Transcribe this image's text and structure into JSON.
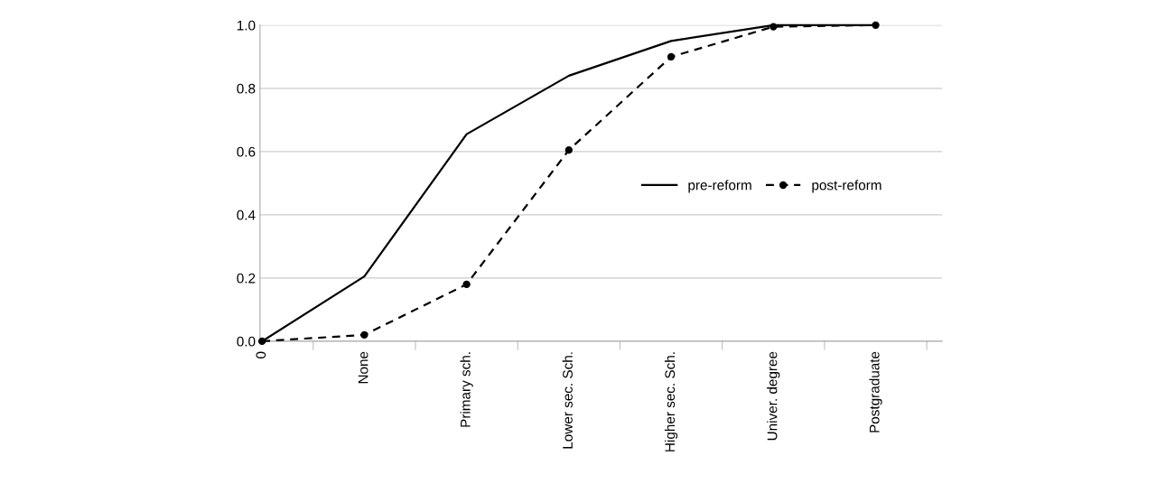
{
  "chart_data": {
    "type": "line",
    "categories": [
      "0",
      "None",
      "Primary sch.",
      "Lower sec. Sch.",
      "Higher sec. Sch.",
      "Univer. degree",
      "Postgraduate"
    ],
    "series": [
      {
        "name": "pre-reform",
        "color": "#000000",
        "line_style": "solid",
        "marker": "none",
        "values": [
          0,
          0.205,
          0.655,
          0.84,
          0.95,
          1.0,
          1.0
        ]
      },
      {
        "name": "post-reform",
        "color": "#000000",
        "line_style": "dashed",
        "marker": "circle",
        "values": [
          0,
          0.02,
          0.18,
          0.605,
          0.9,
          0.995,
          1.0
        ]
      }
    ],
    "ylim": [
      0,
      1.0
    ],
    "yticks": [
      {
        "value": 0,
        "label": "0.0"
      },
      {
        "value": 0.2,
        "label": "0.2"
      },
      {
        "value": 0.4,
        "label": "0.4"
      },
      {
        "value": 0.6,
        "label": "0.6"
      },
      {
        "value": 0.8,
        "label": "0.8"
      },
      {
        "value": 1.0,
        "label": "1.0"
      }
    ],
    "grid": "y",
    "legend": "right"
  }
}
